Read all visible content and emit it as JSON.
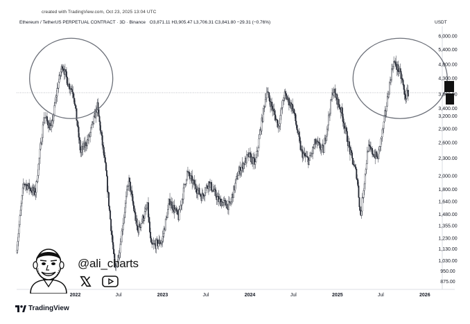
{
  "header": {
    "created": "created with TradingView.com, Oct 23, 2025 13:04 UTC",
    "symbol": "Ethereum / TetherUS PERPETUAL CONTRACT · 3D · Binance",
    "ohlc": "O3,871.11 H3,905.47 L3,706.31 C3,841.80 −29.31 (−0.76%)",
    "currency": "USDT"
  },
  "branding": {
    "handle": "@ali_charts",
    "tv_name": "TradingView",
    "x_icon": "x-logo-icon",
    "youtube_icon": "youtube-play-icon",
    "avatar": "cartoon-avatar"
  },
  "chart_data": {
    "type": "candlestick",
    "y_scale": "log",
    "ylim": [
      840,
      6400
    ],
    "y_ticks": [
      "6,000.00",
      "5,400.00",
      "4,800.00",
      "4,300.00",
      "3,800.00",
      "3,400.00",
      "3,200.00",
      "2,900.00",
      "2,600.00",
      "2,300.00",
      "2,000.00",
      "1,800.00",
      "1,640.00",
      "1,480.00",
      "1,355.00",
      "1,230.00",
      "1,130.00",
      "1,030.00",
      "950.00",
      "875.00"
    ],
    "x_ticks": [
      {
        "label": "2022",
        "date": "2022-01-01",
        "year": true
      },
      {
        "label": "Jul",
        "date": "2022-07-01",
        "year": false
      },
      {
        "label": "2023",
        "date": "2023-01-01",
        "year": true
      },
      {
        "label": "Jul",
        "date": "2023-07-01",
        "year": false
      },
      {
        "label": "2024",
        "date": "2024-01-01",
        "year": true
      },
      {
        "label": "Jul",
        "date": "2024-07-01",
        "year": false
      },
      {
        "label": "2025",
        "date": "2025-01-01",
        "year": true
      },
      {
        "label": "Jul",
        "date": "2025-07-01",
        "year": false
      },
      {
        "label": "2026",
        "date": "2026-01-01",
        "year": true
      }
    ],
    "x_range": [
      "2021-05-01",
      "2026-03-15"
    ],
    "price_path": [
      [
        "2021-05-01",
        1100
      ],
      [
        "2021-06-01",
        1900
      ],
      [
        "2021-07-20",
        1750
      ],
      [
        "2021-08-25",
        3200
      ],
      [
        "2021-09-25",
        2900
      ],
      [
        "2021-10-20",
        4000
      ],
      [
        "2021-11-10",
        4800
      ],
      [
        "2021-12-05",
        4100
      ],
      [
        "2021-12-25",
        3900
      ],
      [
        "2022-01-25",
        2400
      ],
      [
        "2022-03-01",
        2700
      ],
      [
        "2022-04-05",
        3450
      ],
      [
        "2022-05-10",
        2100
      ],
      [
        "2022-06-18",
        950
      ],
      [
        "2022-07-05",
        1100
      ],
      [
        "2022-08-14",
        1950
      ],
      [
        "2022-09-20",
        1300
      ],
      [
        "2022-11-01",
        1570
      ],
      [
        "2022-11-15",
        1150
      ],
      [
        "2022-12-31",
        1200
      ],
      [
        "2023-02-01",
        1650
      ],
      [
        "2023-03-10",
        1450
      ],
      [
        "2023-04-15",
        2050
      ],
      [
        "2023-06-15",
        1700
      ],
      [
        "2023-07-15",
        1900
      ],
      [
        "2023-08-25",
        1650
      ],
      [
        "2023-10-10",
        1580
      ],
      [
        "2023-11-15",
        2050
      ],
      [
        "2023-12-28",
        2350
      ],
      [
        "2024-01-25",
        2200
      ],
      [
        "2024-03-12",
        3900
      ],
      [
        "2024-05-01",
        2950
      ],
      [
        "2024-05-25",
        3800
      ],
      [
        "2024-07-01",
        3400
      ],
      [
        "2024-08-05",
        2400
      ],
      [
        "2024-09-06",
        2250
      ],
      [
        "2024-10-01",
        2600
      ],
      [
        "2024-11-05",
        2450
      ],
      [
        "2024-12-15",
        3950
      ],
      [
        "2025-01-20",
        3300
      ],
      [
        "2025-02-25",
        2400
      ],
      [
        "2025-03-25",
        2000
      ],
      [
        "2025-04-09",
        1450
      ],
      [
        "2025-05-10",
        2500
      ],
      [
        "2025-06-20",
        2300
      ],
      [
        "2025-07-15",
        3000
      ],
      [
        "2025-08-10",
        4200
      ],
      [
        "2025-08-24",
        4900
      ],
      [
        "2025-09-15",
        4600
      ],
      [
        "2025-10-01",
        4200
      ],
      [
        "2025-10-11",
        3700
      ],
      [
        "2025-10-23",
        3842
      ]
    ],
    "last_price_line": 3842,
    "annotations": [
      {
        "shape": "circle",
        "around": "2021 peak",
        "center": [
          "2021-12-15",
          4300
        ]
      },
      {
        "shape": "circle",
        "around": "2025 peak",
        "center": [
          "2025-09-20",
          4300
        ]
      }
    ],
    "grid": false
  }
}
